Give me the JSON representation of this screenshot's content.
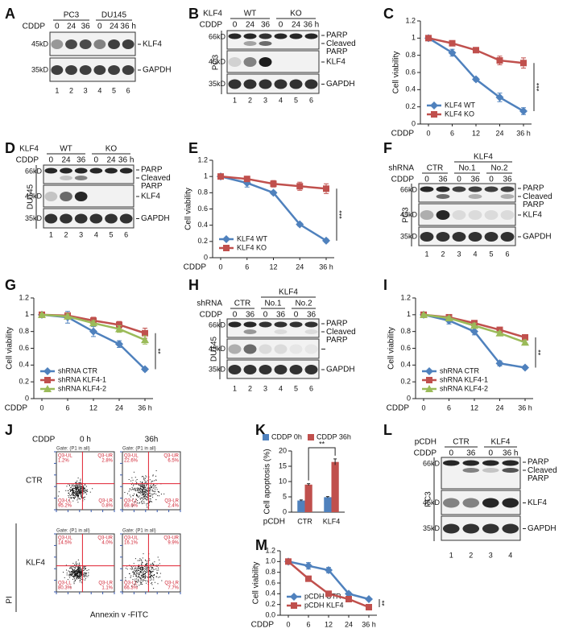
{
  "chart_data": [
    {
      "type": "line",
      "panel": "C",
      "ylabel": "Cell viability",
      "xlabel": "CDDP",
      "categories": [
        "0",
        "6",
        "12",
        "24",
        "36 h"
      ],
      "ylim": [
        0,
        1.2
      ],
      "yticks": [
        0,
        0.2,
        0.4,
        0.6,
        0.8,
        1,
        1.2
      ],
      "legend": "lower left",
      "annotation": "***",
      "series": [
        {
          "name": "KLF4 WT",
          "color": "#4f81bd",
          "marker": "diamond",
          "values": [
            1,
            0.83,
            0.52,
            0.31,
            0.15
          ],
          "errors": [
            0.01,
            0.04,
            0.02,
            0.05,
            0.04
          ]
        },
        {
          "name": "KLF4 KO",
          "color": "#c0504d",
          "marker": "square",
          "values": [
            1,
            0.94,
            0.86,
            0.74,
            0.71
          ],
          "errors": [
            0.01,
            0.03,
            0.03,
            0.05,
            0.06
          ]
        }
      ]
    },
    {
      "type": "line",
      "panel": "E",
      "ylabel": "Cell viability",
      "xlabel": "CDDP",
      "categories": [
        "0",
        "6",
        "12",
        "24",
        "36 h"
      ],
      "ylim": [
        0,
        1.2
      ],
      "yticks": [
        0,
        0.2,
        0.4,
        0.6,
        0.8,
        1,
        1.2
      ],
      "legend": "lower left",
      "annotation": "***",
      "series": [
        {
          "name": "KLF4 WT",
          "color": "#4f81bd",
          "marker": "diamond",
          "values": [
            1,
            0.92,
            0.8,
            0.41,
            0.21
          ],
          "errors": [
            0.01,
            0.05,
            0.02,
            0.02,
            0.02
          ]
        },
        {
          "name": "KLF4 KO",
          "color": "#c0504d",
          "marker": "square",
          "values": [
            1,
            0.97,
            0.91,
            0.88,
            0.85
          ],
          "errors": [
            0.01,
            0.03,
            0.04,
            0.05,
            0.06
          ]
        }
      ]
    },
    {
      "type": "line",
      "panel": "G",
      "ylabel": "Cell viability",
      "xlabel": "CDDP",
      "categories": [
        "0",
        "6",
        "12",
        "24",
        "36 h"
      ],
      "ylim": [
        0,
        1.2
      ],
      "yticks": [
        0,
        0.2,
        0.4,
        0.6,
        0.8,
        1,
        1.2
      ],
      "legend": "lower left",
      "annotation": "**",
      "series": [
        {
          "name": "shRNA CTR",
          "color": "#4f81bd",
          "marker": "diamond",
          "values": [
            1,
            0.97,
            0.8,
            0.65,
            0.35
          ],
          "errors": [
            0.01,
            0.07,
            0.06,
            0.04,
            0.02
          ]
        },
        {
          "name": "shRNA KLF4-1",
          "color": "#c0504d",
          "marker": "square",
          "values": [
            1,
            0.99,
            0.93,
            0.88,
            0.78
          ],
          "errors": [
            0.01,
            0.03,
            0.04,
            0.04,
            0.06
          ]
        },
        {
          "name": "shRNA KLF4-2",
          "color": "#9bbb59",
          "marker": "triangle",
          "values": [
            1,
            0.98,
            0.9,
            0.83,
            0.7
          ],
          "errors": [
            0.01,
            0.03,
            0.03,
            0.04,
            0.05
          ]
        }
      ]
    },
    {
      "type": "line",
      "panel": "I",
      "ylabel": "Cell viability",
      "xlabel": "CDDP",
      "categories": [
        "0",
        "6",
        "12",
        "24",
        "36 h"
      ],
      "ylim": [
        0,
        1.2
      ],
      "yticks": [
        0,
        0.2,
        0.4,
        0.6,
        0.8,
        1,
        1.2
      ],
      "legend": "lower left",
      "annotation": "**",
      "series": [
        {
          "name": "shRNA CTR",
          "color": "#4f81bd",
          "marker": "diamond",
          "values": [
            1,
            0.93,
            0.8,
            0.42,
            0.37
          ],
          "errors": [
            0.01,
            0.04,
            0.04,
            0.03,
            0.02
          ]
        },
        {
          "name": "shRNA KLF4-1",
          "color": "#c0504d",
          "marker": "square",
          "values": [
            1,
            0.97,
            0.9,
            0.82,
            0.73
          ],
          "errors": [
            0.01,
            0.02,
            0.03,
            0.02,
            0.02
          ]
        },
        {
          "name": "shRNA KLF4-2",
          "color": "#9bbb59",
          "marker": "triangle",
          "values": [
            1,
            0.96,
            0.87,
            0.78,
            0.67
          ],
          "errors": [
            0.01,
            0.02,
            0.03,
            0.02,
            0.03
          ]
        }
      ]
    },
    {
      "type": "bar",
      "panel": "K",
      "ylabel": "Cell apoptosis (%)",
      "xlabel": "pCDH",
      "categories": [
        "CTR",
        "KLF4"
      ],
      "ylim": [
        0,
        20
      ],
      "yticks": [
        0,
        5,
        10,
        15,
        20
      ],
      "legend": "top",
      "annotation": "**",
      "series": [
        {
          "name": "CDDP 0h",
          "color": "#4f81bd",
          "values": [
            3.8,
            4.9
          ],
          "errors": [
            0.2,
            0.2
          ]
        },
        {
          "name": "CDDP 36h",
          "color": "#c0504d",
          "values": [
            9,
            16.4
          ],
          "errors": [
            0.3,
            1
          ]
        }
      ]
    },
    {
      "type": "line",
      "panel": "M",
      "ylabel": "Cell viability",
      "xlabel": "CDDP",
      "categories": [
        "0",
        "6",
        "12",
        "24",
        "36 h"
      ],
      "ylim": [
        0,
        1.2
      ],
      "yticks": [
        {
          "value": 0,
          "label": "0.0"
        },
        {
          "value": 0.2,
          "label": "0.2"
        },
        {
          "value": 0.4,
          "label": "0.4"
        },
        {
          "value": 0.6,
          "label": "0.6"
        },
        {
          "value": 0.8,
          "label": "0.8"
        },
        {
          "value": 1,
          "label": "1.0"
        },
        {
          "value": 1.2,
          "label": "1.2"
        }
      ],
      "legend": "lower left",
      "annotation": "**",
      "series": [
        {
          "name": "pCDH CTR",
          "color": "#4f81bd",
          "marker": "diamond",
          "values": [
            1,
            0.92,
            0.84,
            0.4,
            0.3
          ],
          "errors": [
            0.01,
            0.06,
            0.05,
            0.03,
            0.02
          ]
        },
        {
          "name": "pCDH KLF4",
          "color": "#c0504d",
          "marker": "square",
          "values": [
            1,
            0.68,
            0.4,
            0.3,
            0.15
          ],
          "errors": [
            0.01,
            0.04,
            0.02,
            0.02,
            0.04
          ]
        }
      ]
    }
  ],
  "blots": [
    {
      "panel": "A",
      "groups": [
        "PC3",
        "DU145"
      ],
      "treatment": "CDDP",
      "doses": [
        "0",
        "24",
        "36",
        "0",
        "24",
        "36 h"
      ],
      "rows": [
        {
          "marker": "45kD",
          "labels": [
            "KLF4"
          ]
        },
        {
          "marker": "35kD",
          "labels": [
            "GAPDH"
          ]
        }
      ],
      "lanes": [
        1,
        2,
        3,
        4,
        5,
        6
      ]
    },
    {
      "panel": "B",
      "factor": "KLF4",
      "groups": [
        "WT",
        "KO"
      ],
      "treatment": "CDDP",
      "doses": [
        "0",
        "24",
        "36",
        "0",
        "24",
        "36 h"
      ],
      "cell_line": "PC3",
      "rows": [
        {
          "marker": "66kD",
          "labels": [
            "PARP",
            "Cleaved PARP"
          ]
        },
        {
          "marker": "45kD",
          "labels": [
            "KLF4"
          ]
        },
        {
          "marker": "35kD",
          "labels": [
            "GAPDH"
          ]
        }
      ],
      "lanes": [
        1,
        2,
        3,
        4,
        5,
        6
      ]
    },
    {
      "panel": "D",
      "factor": "KLF4",
      "groups": [
        "WT",
        "KO"
      ],
      "treatment": "CDDP",
      "doses": [
        "0",
        "24",
        "36",
        "0",
        "24",
        "36 h"
      ],
      "cell_line": "DU145",
      "rows": [
        {
          "marker": "66kD",
          "labels": [
            "PARP",
            "Cleaved PARP"
          ]
        },
        {
          "marker": "45kD",
          "labels": [
            "KLF4"
          ]
        },
        {
          "marker": "35kD",
          "labels": [
            "GAPDH"
          ]
        }
      ],
      "lanes": [
        1,
        2,
        3,
        4,
        5,
        6
      ]
    },
    {
      "panel": "F",
      "factor": "shRNA",
      "super": "KLF4",
      "groups": [
        "CTR",
        "No.1",
        "No.2"
      ],
      "treatment": "CDDP",
      "doses": [
        "0",
        "36",
        "0",
        "36",
        "0",
        "36"
      ],
      "cell_line": "PC3",
      "rows": [
        {
          "marker": "66kD",
          "labels": [
            "PARP",
            "Cleaved PARP"
          ]
        },
        {
          "marker": "45kD",
          "labels": [
            "KLF4"
          ]
        },
        {
          "marker": "35kD",
          "labels": [
            "GAPDH"
          ]
        }
      ],
      "lanes": [
        1,
        2,
        3,
        4,
        5,
        6
      ]
    },
    {
      "panel": "H",
      "factor": "shRNA",
      "super": "KLF4",
      "groups": [
        "CTR",
        "No.1",
        "No.2"
      ],
      "treatment": "CDDP",
      "doses": [
        "0",
        "36",
        "0",
        "36",
        "0",
        "36"
      ],
      "cell_line": "DU145",
      "rows": [
        {
          "marker": "66kD",
          "labels": [
            "PARP",
            "Cleaved PARP"
          ]
        },
        {
          "marker": "45kD",
          "labels": []
        },
        {
          "marker": "35kD",
          "labels": [
            "GAPDH"
          ]
        }
      ],
      "lanes": [
        1,
        2,
        3,
        4,
        5,
        6
      ]
    },
    {
      "panel": "L",
      "factor": "pCDH",
      "groups": [
        "CTR",
        "KLF4"
      ],
      "treatment": "CDDP",
      "doses": [
        "0",
        "36",
        "0",
        "36 h"
      ],
      "cell_line": "PC3",
      "rows": [
        {
          "marker": "66kD",
          "labels": [
            "PARP",
            "Cleaved PARP"
          ]
        },
        {
          "marker": "45kD",
          "labels": [
            "KLF4"
          ]
        },
        {
          "marker": "35kD",
          "labels": [
            "GAPDH"
          ]
        }
      ],
      "lanes": [
        1,
        2,
        3,
        4
      ]
    }
  ],
  "flow": {
    "panel": "J",
    "treatment": "CDDP",
    "times": [
      "0 h",
      "36h"
    ],
    "rows": [
      "CTR",
      "KLF4"
    ],
    "y_label": "PI",
    "x_label": "Annexin v -FITC",
    "gate": "Gate: (P1 in all)",
    "plots": [
      {
        "quadrants": [
          {
            "name": "Q3-UL",
            "percent": "1.2%"
          },
          {
            "name": "Q3-UR",
            "percent": "2.8%"
          },
          {
            "name": "Q3-LL",
            "percent": "95.2%"
          },
          {
            "name": "Q3-LR",
            "percent": "0.8%"
          }
        ]
      },
      {
        "quadrants": [
          {
            "name": "Q3-UL",
            "percent": "22.6%"
          },
          {
            "name": "Q3-UR",
            "percent": "6.5%"
          },
          {
            "name": "Q3-LL",
            "percent": "68.6%"
          },
          {
            "name": "Q3-LR",
            "percent": "2.4%"
          }
        ]
      },
      {
        "quadrants": [
          {
            "name": "Q3-UL",
            "percent": "14.5%"
          },
          {
            "name": "Q3-UR",
            "percent": "4.0%"
          },
          {
            "name": "Q3-LL",
            "percent": "80.3%"
          },
          {
            "name": "Q3-LR",
            "percent": "1.1%"
          }
        ]
      },
      {
        "quadrants": [
          {
            "name": "Q3-UL",
            "percent": "16.1%"
          },
          {
            "name": "Q3-UR",
            "percent": "9.9%"
          },
          {
            "name": "Q3-LL",
            "percent": "66.3%"
          },
          {
            "name": "Q3-LR",
            "percent": "7.7%"
          }
        ]
      }
    ]
  }
}
